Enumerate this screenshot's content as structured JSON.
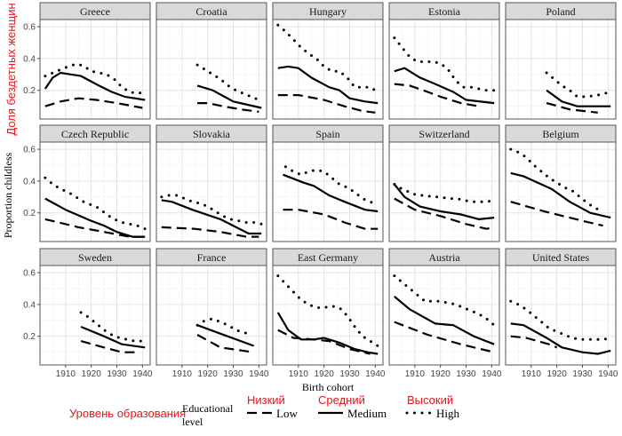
{
  "chart_data": {
    "type": "line",
    "layout": "small-multiples 3x5",
    "xlabel": "Birth cohort",
    "ylabel": "Proportion childless",
    "ylabel_annotation": "Доля бездетных женщин",
    "xlim": [
      1900,
      1943
    ],
    "ylim": [
      0.02,
      0.645
    ],
    "xticks": [
      1910,
      1920,
      1930,
      1940
    ],
    "yticks": [
      0.2,
      0.4,
      0.6
    ],
    "ytick_labels": [
      "0.2",
      "0.4",
      "0.6"
    ],
    "xtick_labels": [
      "1910",
      "1920",
      "1930",
      "1940"
    ],
    "grid": true,
    "legend": {
      "position": "bottom",
      "title": "Educational level",
      "title_annotation": "Уровень образования",
      "entries": [
        {
          "key": "low",
          "label": "Low",
          "annotation": "Низкий",
          "style": "dashed"
        },
        {
          "key": "medium",
          "label": "Medium",
          "annotation": "Средний",
          "style": "solid"
        },
        {
          "key": "high",
          "label": "High",
          "annotation": "Высокий",
          "style": "dotted"
        }
      ]
    },
    "panels": [
      {
        "name": "Greece",
        "low": {
          "x": [
            1902,
            1908,
            1915,
            1922,
            1930,
            1940
          ],
          "y": [
            0.1,
            0.13,
            0.15,
            0.14,
            0.12,
            0.09
          ]
        },
        "medium": {
          "x": [
            1902,
            1905,
            1908,
            1912,
            1916,
            1923,
            1928,
            1933,
            1941
          ],
          "y": [
            0.21,
            0.28,
            0.31,
            0.3,
            0.29,
            0.23,
            0.19,
            0.16,
            0.14
          ]
        },
        "high": {
          "x": [
            1902,
            1905,
            1908,
            1911,
            1914,
            1917,
            1920,
            1923,
            1926,
            1929,
            1932,
            1935,
            1938,
            1941
          ],
          "y": [
            0.29,
            0.31,
            0.33,
            0.35,
            0.365,
            0.355,
            0.32,
            0.31,
            0.3,
            0.27,
            0.22,
            0.19,
            0.18,
            0.19
          ]
        }
      },
      {
        "name": "Croatia",
        "low": {
          "x": [
            1916,
            1920,
            1926,
            1933,
            1940
          ],
          "y": [
            0.12,
            0.12,
            0.1,
            0.08,
            0.065
          ]
        },
        "medium": {
          "x": [
            1916,
            1922,
            1930,
            1941
          ],
          "y": [
            0.23,
            0.2,
            0.13,
            0.09
          ]
        },
        "high": {
          "x": [
            1916,
            1919,
            1922,
            1925,
            1928,
            1931,
            1934,
            1937,
            1940
          ],
          "y": [
            0.36,
            0.33,
            0.3,
            0.27,
            0.23,
            0.2,
            0.18,
            0.16,
            0.14
          ]
        }
      },
      {
        "name": "Hungary",
        "low": {
          "x": [
            1902,
            1910,
            1920,
            1928,
            1935,
            1940
          ],
          "y": [
            0.17,
            0.17,
            0.14,
            0.1,
            0.07,
            0.06
          ]
        },
        "medium": {
          "x": [
            1902,
            1906,
            1910,
            1915,
            1922,
            1926,
            1930,
            1936,
            1941
          ],
          "y": [
            0.34,
            0.35,
            0.34,
            0.28,
            0.22,
            0.2,
            0.15,
            0.13,
            0.12
          ]
        },
        "high": {
          "x": [
            1902,
            1905,
            1908,
            1911,
            1914,
            1917,
            1920,
            1923,
            1926,
            1929,
            1932,
            1935,
            1938,
            1941
          ],
          "y": [
            0.61,
            0.57,
            0.52,
            0.47,
            0.43,
            0.4,
            0.35,
            0.32,
            0.32,
            0.28,
            0.22,
            0.22,
            0.22,
            0.19
          ]
        }
      },
      {
        "name": "Estonia",
        "low": {
          "x": [
            1902,
            1908,
            1915,
            1920,
            1928,
            1935
          ],
          "y": [
            0.24,
            0.23,
            0.19,
            0.16,
            0.12,
            0.1
          ]
        },
        "medium": {
          "x": [
            1902,
            1906,
            1912,
            1918,
            1925,
            1930,
            1941
          ],
          "y": [
            0.32,
            0.34,
            0.28,
            0.24,
            0.19,
            0.14,
            0.12
          ]
        },
        "high": {
          "x": [
            1902,
            1905,
            1908,
            1911,
            1914,
            1917,
            1920,
            1923,
            1926,
            1929,
            1932,
            1935,
            1938,
            1941
          ],
          "y": [
            0.53,
            0.47,
            0.41,
            0.38,
            0.38,
            0.38,
            0.37,
            0.33,
            0.26,
            0.22,
            0.22,
            0.21,
            0.2,
            0.2
          ]
        }
      },
      {
        "name": "Poland",
        "low": {
          "x": [
            1916,
            1925,
            1936
          ],
          "y": [
            0.12,
            0.08,
            0.06
          ]
        },
        "medium": {
          "x": [
            1916,
            1922,
            1928,
            1941
          ],
          "y": [
            0.2,
            0.13,
            0.1,
            0.1
          ]
        },
        "high": {
          "x": [
            1916,
            1919,
            1922,
            1925,
            1928,
            1932,
            1936,
            1941
          ],
          "y": [
            0.31,
            0.27,
            0.23,
            0.2,
            0.16,
            0.16,
            0.17,
            0.19
          ]
        }
      },
      {
        "name": "Czech Republic",
        "low": {
          "x": [
            1902,
            1915,
            1925,
            1935,
            1941
          ],
          "y": [
            0.16,
            0.11,
            0.08,
            0.05,
            0.05
          ]
        },
        "medium": {
          "x": [
            1902,
            1910,
            1920,
            1925,
            1930,
            1936,
            1941
          ],
          "y": [
            0.29,
            0.22,
            0.15,
            0.12,
            0.08,
            0.05,
            0.05
          ]
        },
        "high": {
          "x": [
            1902,
            1905,
            1908,
            1911,
            1914,
            1917,
            1920,
            1923,
            1926,
            1929,
            1932,
            1935,
            1938,
            1941
          ],
          "y": [
            0.42,
            0.38,
            0.35,
            0.33,
            0.3,
            0.27,
            0.25,
            0.23,
            0.19,
            0.16,
            0.14,
            0.13,
            0.12,
            0.1
          ]
        }
      },
      {
        "name": "Slovakia",
        "low": {
          "x": [
            1902,
            1915,
            1925,
            1935,
            1940
          ],
          "y": [
            0.11,
            0.1,
            0.08,
            0.05,
            0.05
          ]
        },
        "medium": {
          "x": [
            1902,
            1906,
            1914,
            1925,
            1936,
            1941
          ],
          "y": [
            0.28,
            0.27,
            0.22,
            0.16,
            0.07,
            0.07
          ]
        },
        "high": {
          "x": [
            1902,
            1905,
            1908,
            1911,
            1914,
            1917,
            1920,
            1923,
            1926,
            1929,
            1932,
            1935,
            1938,
            1941
          ],
          "y": [
            0.3,
            0.31,
            0.31,
            0.29,
            0.27,
            0.26,
            0.24,
            0.21,
            0.18,
            0.16,
            0.15,
            0.14,
            0.14,
            0.13
          ]
        }
      },
      {
        "name": "Spain",
        "low": {
          "x": [
            1904,
            1910,
            1920,
            1928,
            1936,
            1941
          ],
          "y": [
            0.22,
            0.22,
            0.19,
            0.14,
            0.1,
            0.1
          ]
        },
        "medium": {
          "x": [
            1904,
            1912,
            1916,
            1922,
            1928,
            1936,
            1941
          ],
          "y": [
            0.44,
            0.39,
            0.37,
            0.31,
            0.27,
            0.22,
            0.21
          ]
        },
        "high": {
          "x": [
            1905,
            1908,
            1911,
            1914,
            1917,
            1920,
            1923,
            1926,
            1929,
            1932,
            1935,
            1938,
            1941
          ],
          "y": [
            0.49,
            0.46,
            0.44,
            0.46,
            0.47,
            0.46,
            0.42,
            0.38,
            0.36,
            0.33,
            0.29,
            0.27,
            0.25
          ]
        }
      },
      {
        "name": "Switzerland",
        "low": {
          "x": [
            1902,
            1910,
            1920,
            1930,
            1938,
            1941
          ],
          "y": [
            0.29,
            0.22,
            0.18,
            0.13,
            0.1,
            0.11
          ]
        },
        "medium": {
          "x": [
            1902,
            1906,
            1912,
            1920,
            1928,
            1935,
            1941
          ],
          "y": [
            0.38,
            0.3,
            0.24,
            0.21,
            0.19,
            0.16,
            0.17
          ]
        },
        "high": {
          "x": [
            1902,
            1905,
            1908,
            1911,
            1914,
            1917,
            1920,
            1923,
            1926,
            1929,
            1932,
            1935,
            1938,
            1941
          ],
          "y": [
            0.38,
            0.35,
            0.33,
            0.31,
            0.31,
            0.3,
            0.3,
            0.29,
            0.29,
            0.28,
            0.27,
            0.27,
            0.27,
            0.28
          ]
        }
      },
      {
        "name": "Belgium",
        "low": {
          "x": [
            1902,
            1915,
            1930,
            1938
          ],
          "y": [
            0.27,
            0.21,
            0.15,
            0.12
          ]
        },
        "medium": {
          "x": [
            1902,
            1907,
            1918,
            1925,
            1933,
            1941
          ],
          "y": [
            0.45,
            0.43,
            0.35,
            0.27,
            0.2,
            0.17
          ]
        },
        "high": {
          "x": [
            1902,
            1905,
            1908,
            1911,
            1914,
            1917,
            1920,
            1923,
            1926,
            1929,
            1932,
            1935,
            1938
          ],
          "y": [
            0.6,
            0.58,
            0.55,
            0.5,
            0.46,
            0.42,
            0.39,
            0.36,
            0.34,
            0.3,
            0.26,
            0.23,
            0.21
          ]
        }
      },
      {
        "name": "Sweden",
        "low": {
          "x": [
            1916,
            1925,
            1932,
            1939
          ],
          "y": [
            0.17,
            0.13,
            0.1,
            0.1
          ]
        },
        "medium": {
          "x": [
            1916,
            1925,
            1932,
            1941
          ],
          "y": [
            0.26,
            0.2,
            0.15,
            0.13
          ]
        },
        "high": {
          "x": [
            1916,
            1919,
            1922,
            1925,
            1928,
            1931,
            1934,
            1937,
            1940
          ],
          "y": [
            0.35,
            0.32,
            0.28,
            0.24,
            0.21,
            0.19,
            0.18,
            0.17,
            0.17
          ]
        }
      },
      {
        "name": "France",
        "low": {
          "x": [
            1916,
            1925,
            1938
          ],
          "y": [
            0.21,
            0.13,
            0.1
          ]
        },
        "medium": {
          "x": [
            1916,
            1938
          ],
          "y": [
            0.27,
            0.14
          ]
        },
        "high": {
          "x": [
            1916,
            1919,
            1922,
            1925,
            1928,
            1931,
            1935
          ],
          "y": [
            0.27,
            0.3,
            0.31,
            0.29,
            0.27,
            0.24,
            0.22
          ]
        }
      },
      {
        "name": "East Germany",
        "low": {
          "x": [
            1902,
            1908,
            1916,
            1922,
            1930,
            1938
          ],
          "y": [
            0.24,
            0.19,
            0.18,
            0.17,
            0.12,
            0.09
          ]
        },
        "medium": {
          "x": [
            1902,
            1906,
            1911,
            1916,
            1920,
            1926,
            1932,
            1937,
            1941
          ],
          "y": [
            0.35,
            0.24,
            0.18,
            0.18,
            0.19,
            0.16,
            0.12,
            0.1,
            0.09
          ]
        },
        "high": {
          "x": [
            1902,
            1905,
            1908,
            1911,
            1914,
            1917,
            1920,
            1923,
            1926,
            1929,
            1932,
            1935,
            1938,
            1941
          ],
          "y": [
            0.58,
            0.53,
            0.48,
            0.43,
            0.4,
            0.38,
            0.38,
            0.39,
            0.38,
            0.33,
            0.26,
            0.2,
            0.17,
            0.14
          ]
        }
      },
      {
        "name": "Austria",
        "low": {
          "x": [
            1902,
            1915,
            1928,
            1941
          ],
          "y": [
            0.29,
            0.21,
            0.15,
            0.1
          ]
        },
        "medium": {
          "x": [
            1902,
            1908,
            1918,
            1925,
            1933,
            1941
          ],
          "y": [
            0.45,
            0.37,
            0.28,
            0.27,
            0.2,
            0.15
          ]
        },
        "high": {
          "x": [
            1902,
            1905,
            1908,
            1911,
            1914,
            1917,
            1920,
            1923,
            1926,
            1929,
            1932,
            1935,
            1938,
            1941
          ],
          "y": [
            0.58,
            0.54,
            0.5,
            0.46,
            0.42,
            0.42,
            0.42,
            0.41,
            0.4,
            0.38,
            0.36,
            0.34,
            0.31,
            0.27
          ]
        }
      },
      {
        "name": "United States",
        "low": {
          "x": [
            1902,
            1908,
            1917,
            1920
          ],
          "y": [
            0.2,
            0.19,
            0.15,
            0.13
          ]
        },
        "medium": {
          "x": [
            1902,
            1907,
            1916,
            1922,
            1930,
            1936,
            1941
          ],
          "y": [
            0.28,
            0.27,
            0.19,
            0.13,
            0.1,
            0.09,
            0.11
          ]
        },
        "high": {
          "x": [
            1902,
            1905,
            1908,
            1911,
            1914,
            1917,
            1920,
            1923,
            1926,
            1929,
            1932,
            1935,
            1938,
            1941
          ],
          "y": [
            0.42,
            0.4,
            0.37,
            0.33,
            0.29,
            0.25,
            0.23,
            0.21,
            0.19,
            0.18,
            0.18,
            0.18,
            0.18,
            0.19
          ]
        }
      }
    ]
  }
}
